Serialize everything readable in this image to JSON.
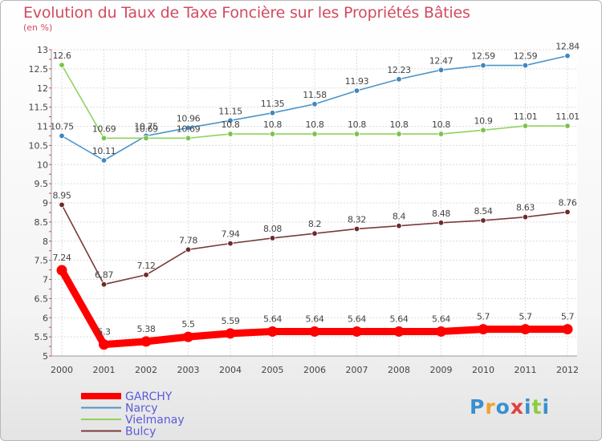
{
  "header": {
    "title": "Evolution du Taux de Taxe Foncière sur les Propriétés Bâties",
    "unit": "(en %)"
  },
  "chart_data": {
    "type": "line",
    "title": "Evolution du Taux de Taxe Foncière sur les Propriétés Bâties",
    "ylabel": "(en %)",
    "x": [
      "2000",
      "2001",
      "2002",
      "2003",
      "2004",
      "2005",
      "2006",
      "2007",
      "2008",
      "2009",
      "2010",
      "2011",
      "2012"
    ],
    "ylim": [
      5,
      13
    ],
    "yticks": [
      "5",
      "5.5",
      "6",
      "6.5",
      "7",
      "7.5",
      "8",
      "8.5",
      "9",
      "9.5",
      "10",
      "10.5",
      "11",
      "11.5",
      "12",
      "12.5",
      "13"
    ],
    "grid": true,
    "legend_position": "bottom-left",
    "series": [
      {
        "name": "Narcy",
        "color": "#4c95c9",
        "marker": "#3f87c0",
        "values": [
          10.75,
          10.11,
          10.75,
          10.96,
          11.15,
          11.35,
          11.58,
          11.93,
          12.23,
          12.47,
          12.59,
          12.59,
          12.84
        ],
        "labels": [
          "10.75",
          "10.11",
          "10.75",
          "10.96",
          "11.15",
          "11.35",
          "11.58",
          "11.93",
          "12.23",
          "12.47",
          "12.59",
          "12.59",
          "12.84"
        ]
      },
      {
        "name": "Vielmanay",
        "color": "#8ed35f",
        "marker": "#7ac44a",
        "values": [
          12.6,
          10.69,
          10.69,
          10.69,
          10.8,
          10.8,
          10.8,
          10.8,
          10.8,
          10.8,
          10.9,
          11.01,
          11.01
        ],
        "labels": [
          "12.6",
          "10.69",
          "10.69",
          "10.69",
          "10.8",
          "10.8",
          "10.8",
          "10.8",
          "10.8",
          "10.8",
          "10.9",
          "11.01",
          "11.01"
        ]
      },
      {
        "name": "Bulcy",
        "color": "#7a3a3a",
        "marker": "#6e2a2a",
        "values": [
          8.95,
          6.87,
          7.12,
          7.78,
          7.94,
          8.08,
          8.2,
          8.32,
          8.4,
          8.48,
          8.54,
          8.63,
          8.76
        ],
        "labels": [
          "8.95",
          "6.87",
          "7.12",
          "7.78",
          "7.94",
          "8.08",
          "8.2",
          "8.32",
          "8.4",
          "8.48",
          "8.54",
          "8.63",
          "8.76"
        ]
      },
      {
        "name": "GARCHY",
        "color": "#ff0000",
        "marker": "#ff0000",
        "values": [
          7.24,
          5.3,
          5.38,
          5.5,
          5.59,
          5.64,
          5.64,
          5.64,
          5.64,
          5.64,
          5.7,
          5.7,
          5.7
        ],
        "labels": [
          "7.24",
          "5.3",
          "5.38",
          "5.5",
          "5.59",
          "5.64",
          "5.64",
          "5.64",
          "5.64",
          "5.64",
          "5.7",
          "5.7",
          "5.7"
        ]
      }
    ],
    "legend": [
      "GARCHY",
      "Narcy",
      "Vielmanay",
      "Bulcy"
    ]
  },
  "logo": {
    "text": "Proxiti"
  }
}
